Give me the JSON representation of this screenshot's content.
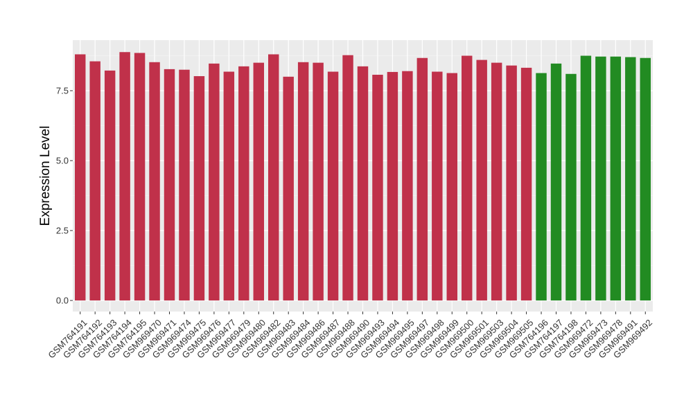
{
  "chart_data": {
    "type": "bar",
    "title": "",
    "xlabel": "",
    "ylabel": "Expression Level",
    "ylim": [
      0,
      9.25
    ],
    "yticks": [
      0.0,
      2.5,
      5.0,
      7.5
    ],
    "ytick_labels": [
      "0.0",
      "2.5",
      "5.0",
      "7.5"
    ],
    "grid": true,
    "legend": "none",
    "colors": {
      "group_a": "#c0314a",
      "group_b": "#228b22",
      "panel_bg": "#ebebeb",
      "grid_major": "#ffffff"
    },
    "categories": [
      "GSM764191",
      "GSM764192",
      "GSM764193",
      "GSM764194",
      "GSM764195",
      "GSM969470",
      "GSM969471",
      "GSM969474",
      "GSM969475",
      "GSM969476",
      "GSM969477",
      "GSM969479",
      "GSM969480",
      "GSM969482",
      "GSM969483",
      "GSM969484",
      "GSM969486",
      "GSM969487",
      "GSM969488",
      "GSM969490",
      "GSM969493",
      "GSM969494",
      "GSM969495",
      "GSM969497",
      "GSM969498",
      "GSM969499",
      "GSM969500",
      "GSM969501",
      "GSM969503",
      "GSM969504",
      "GSM969505",
      "GSM764196",
      "GSM764197",
      "GSM764198",
      "GSM969472",
      "GSM969473",
      "GSM969478",
      "GSM969491",
      "GSM969492"
    ],
    "values": [
      8.8,
      8.55,
      8.22,
      8.88,
      8.85,
      8.52,
      8.27,
      8.25,
      8.02,
      8.47,
      8.18,
      8.37,
      8.5,
      8.8,
      8.0,
      8.52,
      8.5,
      8.18,
      8.77,
      8.37,
      8.07,
      8.17,
      8.2,
      8.67,
      8.18,
      8.13,
      8.75,
      8.6,
      8.5,
      8.4,
      8.32,
      8.13,
      8.47,
      8.1,
      8.75,
      8.72,
      8.72,
      8.7,
      8.67
    ],
    "groups": [
      "a",
      "a",
      "a",
      "a",
      "a",
      "a",
      "a",
      "a",
      "a",
      "a",
      "a",
      "a",
      "a",
      "a",
      "a",
      "a",
      "a",
      "a",
      "a",
      "a",
      "a",
      "a",
      "a",
      "a",
      "a",
      "a",
      "a",
      "a",
      "a",
      "a",
      "a",
      "b",
      "b",
      "b",
      "b",
      "b",
      "b",
      "b",
      "b"
    ]
  }
}
